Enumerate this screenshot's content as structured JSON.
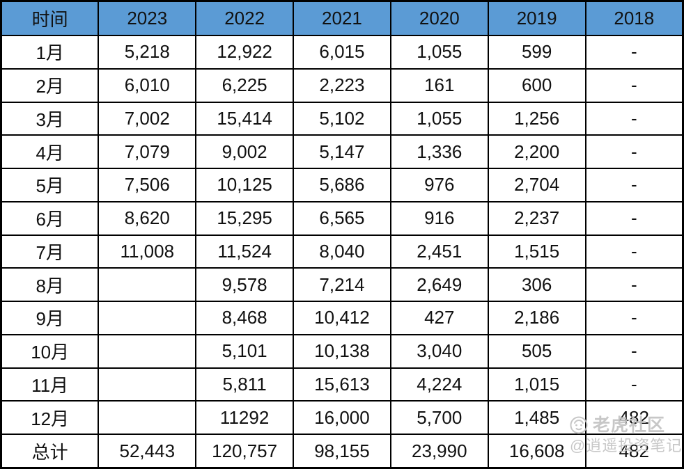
{
  "chart_data": {
    "type": "table",
    "columns": [
      "时间",
      "2023",
      "2022",
      "2021",
      "2020",
      "2019",
      "2018"
    ],
    "rows": [
      {
        "label": "1月",
        "values": [
          "5,218",
          "12,922",
          "6,015",
          "1,055",
          "599",
          "-"
        ]
      },
      {
        "label": "2月",
        "values": [
          "6,010",
          "6,225",
          "2,223",
          "161",
          "600",
          "-"
        ]
      },
      {
        "label": "3月",
        "values": [
          "7,002",
          "15,414",
          "5,102",
          "1,055",
          "1,256",
          "-"
        ]
      },
      {
        "label": "4月",
        "values": [
          "7,079",
          "9,002",
          "5,147",
          "1,336",
          "2,200",
          "-"
        ]
      },
      {
        "label": "5月",
        "values": [
          "7,506",
          "10,125",
          "5,686",
          "976",
          "2,704",
          "-"
        ]
      },
      {
        "label": "6月",
        "values": [
          "8,620",
          "15,295",
          "6,565",
          "916",
          "2,237",
          "-"
        ]
      },
      {
        "label": "7月",
        "values": [
          "11,008",
          "11,524",
          "8,040",
          "2,451",
          "1,515",
          "-"
        ]
      },
      {
        "label": "8月",
        "values": [
          "",
          "9,578",
          "7,214",
          "2,649",
          "306",
          "-"
        ]
      },
      {
        "label": "9月",
        "values": [
          "",
          "8,468",
          "10,412",
          "427",
          "2,186",
          "-"
        ]
      },
      {
        "label": "10月",
        "values": [
          "",
          "5,101",
          "10,138",
          "3,040",
          "505",
          "-"
        ]
      },
      {
        "label": "11月",
        "values": [
          "",
          "5,811",
          "15,613",
          "4,224",
          "1,015",
          "-"
        ]
      },
      {
        "label": "12月",
        "values": [
          "",
          "11292",
          "16,000",
          "5,700",
          "1,485",
          "482"
        ]
      },
      {
        "label": "总计",
        "values": [
          "52,443",
          "120,757",
          "98,155",
          "23,990",
          "16,608",
          "482"
        ]
      }
    ]
  },
  "watermark": {
    "community": "老虎社区",
    "handle": "@逍遥投资笔记"
  },
  "colors": {
    "header_bg": "#5B9BD5",
    "border": "#000000",
    "cell_text": "#111111",
    "watermark": "#c3c3c3"
  }
}
